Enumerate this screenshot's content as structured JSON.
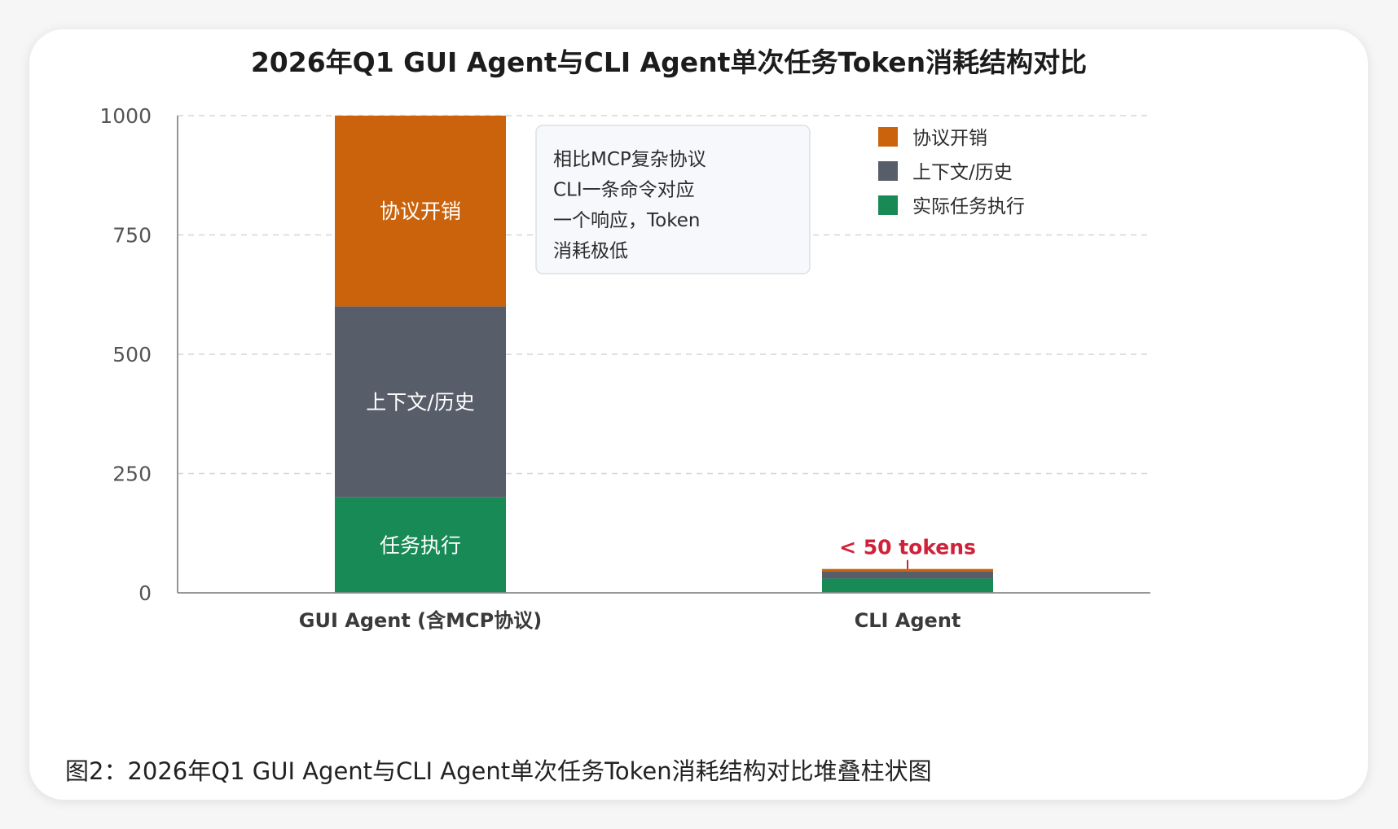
{
  "chart_data": {
    "type": "bar",
    "stacked": true,
    "title": "2026年Q1 GUI Agent与CLI Agent单次任务Token消耗结构对比",
    "categories": [
      "GUI Agent (含MCP协议)",
      "CLI Agent"
    ],
    "series": [
      {
        "name": "实际任务执行",
        "color": "#178a55",
        "values": [
          200,
          30
        ]
      },
      {
        "name": "上下文/历史",
        "color": "#585d6a",
        "values": [
          400,
          15
        ]
      },
      {
        "name": "协议开销",
        "color": "#ca630c",
        "values": [
          400,
          5
        ]
      }
    ],
    "segment_labels": [
      [
        "任务执行",
        "上下文/历史",
        "协议开销"
      ],
      [
        "",
        "",
        ""
      ]
    ],
    "ylim": [
      0,
      1000
    ],
    "yticks": [
      0,
      250,
      500,
      750,
      1000
    ],
    "grid": true,
    "legend_position": "top-right",
    "legend_order": [
      "协议开销",
      "上下文/历史",
      "实际任务执行"
    ],
    "annotation": {
      "text": "< 50 tokens",
      "color": "#d0213a",
      "category": "CLI Agent"
    },
    "note_box": {
      "lines": [
        "相比MCP复杂协议",
        "CLI一条命令对应",
        "一个响应，Token",
        "消耗极低"
      ]
    }
  },
  "caption": "图2：2026年Q1 GUI Agent与CLI Agent单次任务Token消耗结构对比堆叠柱状图"
}
